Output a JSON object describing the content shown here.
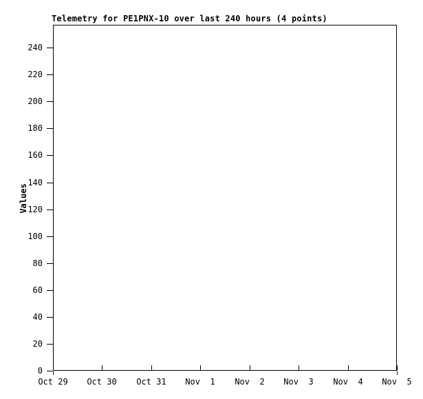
{
  "page": {
    "background": "#ffffff",
    "text_color": "#000000",
    "axis_color": "#000000"
  },
  "chart_data": {
    "type": "scatter",
    "title": "Telemetry for PE1PNX-10 over last 240 hours (4 points)",
    "xlabel": "",
    "ylabel": "Values",
    "x_tick_labels": [
      "Oct 29",
      "Oct 30",
      "Oct 31",
      "Nov  1",
      "Nov  2",
      "Nov  3",
      "Nov  4",
      "Nov  5"
    ],
    "y_ticks": [
      0,
      20,
      40,
      60,
      80,
      100,
      120,
      140,
      160,
      180,
      200,
      220,
      240
    ],
    "ylim": [
      0,
      257
    ],
    "xlim_labels": [
      "Oct 29",
      "Nov 5"
    ],
    "grid": false,
    "legend": "none",
    "points_in_title": 4,
    "visible_points": 0,
    "series": []
  }
}
